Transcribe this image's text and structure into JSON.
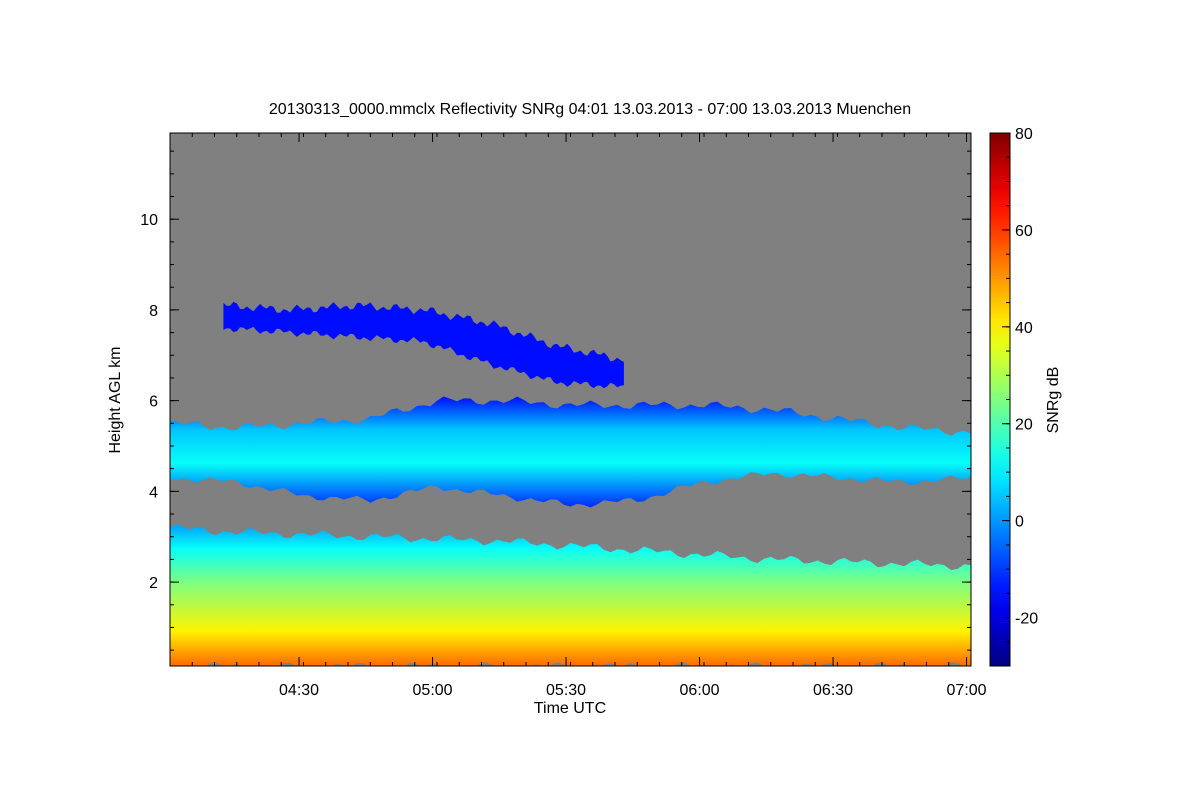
{
  "chart_data": {
    "type": "heatmap",
    "title": "20130313_0000.mmclx Reflectivity SNRg   04:01 13.03.2013 - 07:00 13.03.2013 Muenchen",
    "xlabel": "Time UTC",
    "ylabel": "Height AGL km",
    "x_range_minutes_utc": [
      241,
      421
    ],
    "x_ticks": [
      {
        "value": 270,
        "label": "04:30"
      },
      {
        "value": 300,
        "label": "05:00"
      },
      {
        "value": 330,
        "label": "05:30"
      },
      {
        "value": 360,
        "label": "06:00"
      },
      {
        "value": 390,
        "label": "06:30"
      },
      {
        "value": 420,
        "label": "07:00"
      }
    ],
    "y_range_km": [
      0.15,
      11.9
    ],
    "y_ticks": [
      2,
      4,
      6,
      8,
      10
    ],
    "colorbar": {
      "label": "SNRg dB",
      "range": [
        -30,
        80
      ],
      "ticks": [
        -20,
        0,
        20,
        40,
        60,
        80
      ]
    },
    "background_color": "#808080",
    "layers": [
      {
        "name": "boundary layer",
        "time_start": 241,
        "time_end": 421,
        "base_km": 0.15,
        "top_km": [
          3.2,
          3.1,
          3.05,
          3.0,
          2.95,
          2.9,
          2.8,
          2.7,
          2.6,
          2.5,
          2.45,
          2.4,
          2.35
        ],
        "snr_at_base_db": 55,
        "snr_at_top_db": 2
      },
      {
        "name": "mid-level cloud",
        "time_start": 241,
        "time_end": 421,
        "base_km": [
          4.3,
          4.2,
          3.9,
          3.8,
          4.1,
          3.9,
          3.7,
          3.8,
          4.2,
          4.4,
          4.3,
          4.2,
          4.3
        ],
        "top_km": [
          5.5,
          5.4,
          5.5,
          5.6,
          6.0,
          6.0,
          5.9,
          5.9,
          5.9,
          5.8,
          5.6,
          5.4,
          5.3
        ],
        "snr_max_db": 12
      },
      {
        "name": "upper cloud",
        "time_start": 253,
        "time_end": 343,
        "base_km": [
          7.6,
          7.5,
          7.4,
          7.3,
          6.8,
          6.4,
          6.3
        ],
        "top_km": [
          8.1,
          8.0,
          8.1,
          8.0,
          7.7,
          7.2,
          6.9
        ],
        "snr_max_db": -15
      }
    ]
  }
}
